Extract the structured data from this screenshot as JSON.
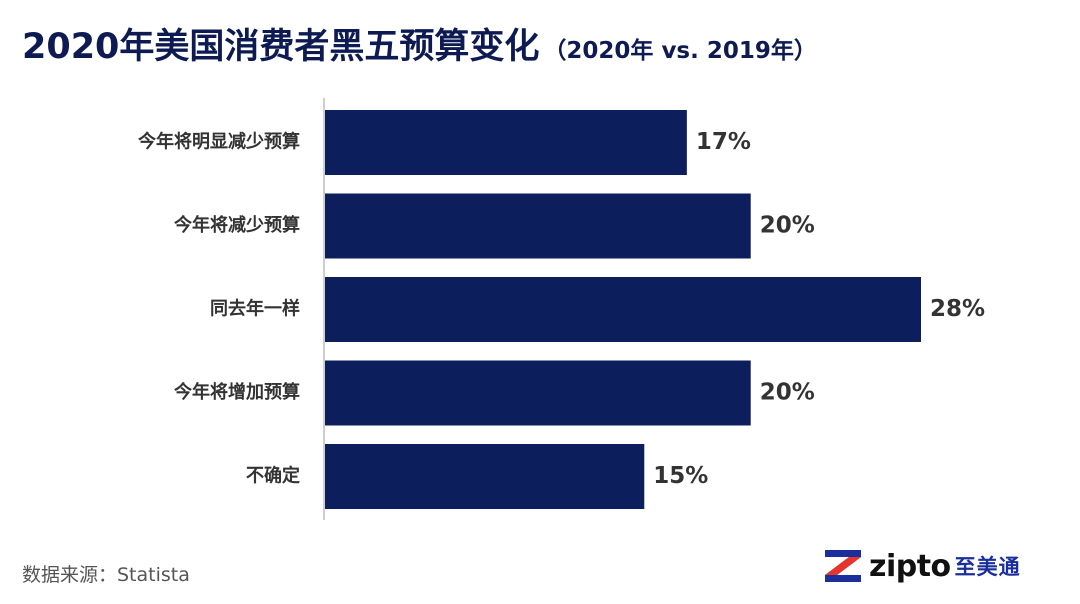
{
  "colors": {
    "bar": "#0c1f5c",
    "title": "#0d1b52",
    "label": "#333333",
    "axis": "#bdbdbd",
    "logo_red": "#e8352b",
    "logo_blue": "#1a2f9c"
  },
  "header": {
    "title": "2020年美国消费者黑五预算变化",
    "subtitle": "（2020年 vs. 2019年）"
  },
  "footer": {
    "source": "数据来源：Statista"
  },
  "logo": {
    "icon": "z-logo-icon",
    "brand": "zipto",
    "brand_cn": "至美通"
  },
  "chart_data": {
    "type": "bar",
    "orientation": "horizontal",
    "categories": [
      "今年将明显减少预算",
      "今年将减少预算",
      "同去年一样",
      "今年将增加预算",
      "不确定"
    ],
    "values": [
      17,
      20,
      28,
      20,
      15
    ],
    "value_labels": [
      "17%",
      "20%",
      "28%",
      "20%",
      "15%"
    ],
    "title": "2020年美国消费者黑五预算变化",
    "xlim": [
      0,
      28
    ],
    "grid": false
  }
}
